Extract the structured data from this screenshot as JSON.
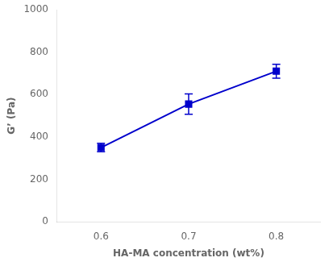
{
  "chart_data": {
    "type": "line",
    "x": [
      0.6,
      0.7,
      0.8
    ],
    "values": [
      350,
      555,
      710
    ],
    "yerr": [
      20,
      48,
      33
    ],
    "color": "#0000CC",
    "marker": "square",
    "xlabel": "HA-MA concentration (wt%)",
    "ylabel": "G’ (Pa)",
    "xlim": [
      0.55,
      0.85
    ],
    "ylim": [
      0,
      1000
    ],
    "xticks": [
      0.6,
      0.7,
      0.8
    ],
    "yticks": [
      0,
      200,
      400,
      600,
      800,
      1000
    ],
    "grid": false
  }
}
